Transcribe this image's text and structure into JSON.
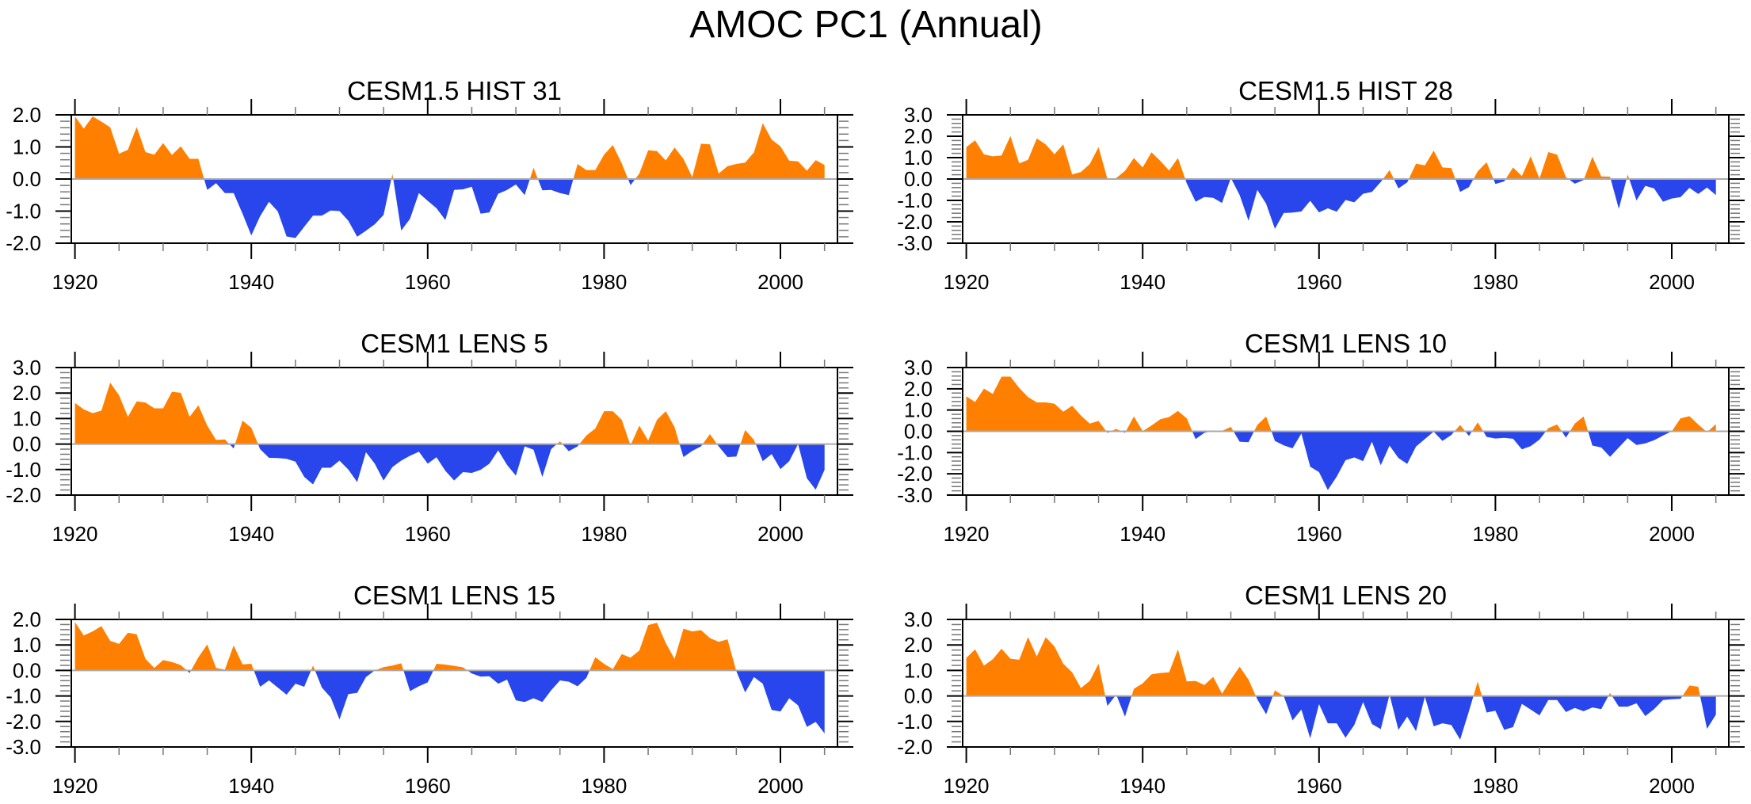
{
  "figure": {
    "title": "AMOC PC1 (Annual)"
  },
  "colors": {
    "positive": "#ff8000",
    "negative": "#2846eb",
    "zero_line": "#aaaaaa",
    "axis": "#000000"
  },
  "chart_data": [
    {
      "type": "area",
      "title": "CESM1.5 HIST 31",
      "xlabel": "",
      "ylabel": "",
      "x_start": 1920,
      "x_end": 2005,
      "xlim": [
        1919.5,
        2006.5
      ],
      "ylim": [
        -2.0,
        2.0
      ],
      "yticks": [
        -2.0,
        -1.0,
        0.0,
        1.0,
        2.0
      ],
      "ytick_labels": [
        "-2.0",
        "-1.0",
        "0.0",
        "1.0",
        "2.0"
      ],
      "xticks": [
        1920,
        1940,
        1960,
        1980,
        2000
      ],
      "xtick_labels": [
        "1920",
        "1940",
        "1960",
        "1980",
        "2000"
      ],
      "fill_above_zero": "orange",
      "fill_below_zero": "blue",
      "values": [
        1.95,
        1.57,
        1.95,
        1.79,
        1.61,
        0.79,
        0.91,
        1.62,
        0.84,
        0.76,
        1.12,
        0.75,
        1.02,
        0.63,
        0.63,
        -0.34,
        -0.13,
        -0.44,
        -0.44,
        -1.08,
        -1.76,
        -1.16,
        -0.71,
        -1.01,
        -1.79,
        -1.84,
        -1.49,
        -1.14,
        -1.14,
        -0.98,
        -1.0,
        -1.3,
        -1.8,
        -1.61,
        -1.41,
        -1.12,
        0.16,
        -1.61,
        -1.24,
        -0.44,
        -0.68,
        -0.91,
        -1.28,
        -0.34,
        -0.32,
        -0.24,
        -1.08,
        -1.04,
        -0.46,
        -0.34,
        -0.17,
        -0.5,
        0.35,
        -0.35,
        -0.34,
        -0.44,
        -0.5,
        0.47,
        0.28,
        0.28,
        0.76,
        1.06,
        0.49,
        -0.19,
        0.17,
        0.9,
        0.87,
        0.58,
        0.98,
        0.63,
        0.06,
        1.1,
        1.08,
        0.17,
        0.4,
        0.47,
        0.51,
        0.83,
        1.74,
        1.23,
        1.02,
        0.57,
        0.55,
        0.26,
        0.59,
        0.44
      ]
    },
    {
      "type": "area",
      "title": "CESM1.5 HIST 28",
      "xlabel": "",
      "ylabel": "",
      "x_start": 1920,
      "x_end": 2005,
      "xlim": [
        1919.5,
        2006.5
      ],
      "ylim": [
        -3.0,
        3.0
      ],
      "yticks": [
        -3.0,
        -2.0,
        -1.0,
        0.0,
        1.0,
        2.0,
        3.0
      ],
      "ytick_labels": [
        "-3.0",
        "-2.0",
        "-1.0",
        "0.0",
        "1.0",
        "2.0",
        "3.0"
      ],
      "xticks": [
        1920,
        1940,
        1960,
        1980,
        2000
      ],
      "xtick_labels": [
        "1920",
        "1940",
        "1960",
        "1980",
        "2000"
      ],
      "fill_above_zero": "orange",
      "fill_below_zero": "blue",
      "values": [
        1.49,
        1.81,
        1.15,
        1.06,
        1.1,
        2.01,
        0.73,
        0.9,
        1.9,
        1.62,
        1.16,
        1.62,
        0.21,
        0.33,
        0.7,
        1.49,
        0.01,
        0.05,
        0.38,
        0.98,
        0.54,
        1.25,
        0.85,
        0.4,
        0.98,
        -0.2,
        -1.06,
        -0.84,
        -0.88,
        -1.12,
        0.05,
        -0.75,
        -1.95,
        -0.51,
        -1.15,
        -2.33,
        -1.59,
        -1.57,
        -1.52,
        -1.02,
        -1.56,
        -1.37,
        -1.53,
        -0.98,
        -1.09,
        -0.69,
        -0.6,
        -0.14,
        0.42,
        -0.44,
        -0.16,
        0.72,
        0.64,
        1.33,
        0.54,
        0.51,
        -0.6,
        -0.38,
        0.36,
        0.79,
        -0.23,
        -0.11,
        0.54,
        0.14,
        1.06,
        0.02,
        1.26,
        1.14,
        0.09,
        -0.22,
        -0.05,
        1.04,
        0.12,
        0.11,
        -1.4,
        0.21,
        -1.0,
        -0.32,
        -0.44,
        -1.06,
        -0.91,
        -0.85,
        -0.41,
        -0.7,
        -0.4,
        -0.75
      ]
    },
    {
      "type": "area",
      "title": "CESM1 LENS 5",
      "xlabel": "",
      "ylabel": "",
      "x_start": 1920,
      "x_end": 2005,
      "xlim": [
        1919.5,
        2006.5
      ],
      "ylim": [
        -2.0,
        3.0
      ],
      "yticks": [
        -2.0,
        -1.0,
        0.0,
        1.0,
        2.0,
        3.0
      ],
      "ytick_labels": [
        "-2.0",
        "-1.0",
        "0.0",
        "1.0",
        "2.0",
        "3.0"
      ],
      "xticks": [
        1920,
        1940,
        1960,
        1980,
        2000
      ],
      "xtick_labels": [
        "1920",
        "1940",
        "1960",
        "1980",
        "2000"
      ],
      "fill_above_zero": "orange",
      "fill_below_zero": "blue",
      "values": [
        1.61,
        1.36,
        1.21,
        1.31,
        2.41,
        1.91,
        1.07,
        1.67,
        1.63,
        1.4,
        1.4,
        2.05,
        2.01,
        1.07,
        1.52,
        0.72,
        0.16,
        0.18,
        -0.17,
        0.92,
        0.64,
        -0.2,
        -0.54,
        -0.55,
        -0.58,
        -0.69,
        -1.29,
        -1.58,
        -0.93,
        -0.93,
        -0.65,
        -1.0,
        -1.49,
        -0.32,
        -0.77,
        -1.43,
        -0.9,
        -0.65,
        -0.46,
        -0.3,
        -0.77,
        -0.52,
        -1.05,
        -1.43,
        -1.1,
        -1.13,
        -1.01,
        -0.77,
        -0.25,
        -0.82,
        -1.24,
        -0.09,
        -0.22,
        -1.29,
        -0.2,
        0.11,
        -0.28,
        -0.09,
        0.34,
        0.61,
        1.29,
        1.29,
        0.95,
        -0.05,
        0.72,
        0.14,
        0.95,
        1.29,
        0.66,
        -0.51,
        -0.27,
        -0.09,
        0.39,
        -0.09,
        -0.51,
        -0.49,
        0.55,
        0.16,
        -0.67,
        -0.39,
        -0.98,
        -0.67,
        0.0,
        -1.34,
        -1.79,
        -1.01
      ]
    },
    {
      "type": "area",
      "title": "CESM1 LENS 10",
      "xlabel": "",
      "ylabel": "",
      "x_start": 1920,
      "x_end": 2005,
      "xlim": [
        1919.5,
        2006.5
      ],
      "ylim": [
        -3.0,
        3.0
      ],
      "yticks": [
        -3.0,
        -2.0,
        -1.0,
        0.0,
        1.0,
        2.0,
        3.0
      ],
      "ytick_labels": [
        "-3.0",
        "-2.0",
        "-1.0",
        "0.0",
        "1.0",
        "2.0",
        "3.0"
      ],
      "xticks": [
        1920,
        1940,
        1960,
        1980,
        2000
      ],
      "xtick_labels": [
        "1920",
        "1940",
        "1960",
        "1980",
        "2000"
      ],
      "fill_above_zero": "orange",
      "fill_below_zero": "blue",
      "values": [
        1.65,
        1.38,
        2.01,
        1.76,
        2.57,
        2.57,
        2.04,
        1.61,
        1.36,
        1.36,
        1.3,
        0.92,
        1.2,
        0.74,
        0.36,
        0.49,
        -0.07,
        0.11,
        -0.07,
        0.7,
        0.01,
        0.27,
        0.57,
        0.67,
        0.96,
        0.61,
        -0.36,
        -0.07,
        0.02,
        0.02,
        0.21,
        -0.49,
        -0.51,
        0.3,
        0.7,
        -0.45,
        -0.66,
        -0.8,
        -0.1,
        -1.67,
        -1.92,
        -2.76,
        -2.13,
        -1.36,
        -1.23,
        -1.4,
        -0.49,
        -1.6,
        -0.67,
        -1.26,
        -1.53,
        -0.72,
        -0.36,
        -0.02,
        -0.45,
        -0.17,
        0.3,
        -0.22,
        0.42,
        -0.26,
        -0.34,
        -0.31,
        -0.35,
        -0.85,
        -0.7,
        -0.39,
        0.15,
        0.32,
        -0.3,
        0.36,
        0.7,
        -0.67,
        -0.76,
        -1.2,
        -0.76,
        -0.32,
        -0.64,
        -0.57,
        -0.42,
        -0.2,
        0.0,
        0.61,
        0.71,
        0.32,
        -0.04,
        0.34
      ]
    },
    {
      "type": "area",
      "title": "CESM1 LENS 15",
      "xlabel": "",
      "ylabel": "",
      "x_start": 1920,
      "x_end": 2005,
      "xlim": [
        1919.5,
        2006.5
      ],
      "ylim": [
        -3.0,
        2.0
      ],
      "yticks": [
        -3.0,
        -2.0,
        -1.0,
        0.0,
        1.0,
        2.0
      ],
      "ytick_labels": [
        "-3.0",
        "-2.0",
        "-1.0",
        "0.0",
        "1.0",
        "2.0"
      ],
      "xticks": [
        1920,
        1940,
        1960,
        1980,
        2000
      ],
      "xtick_labels": [
        "1920",
        "1940",
        "1960",
        "1980",
        "2000"
      ],
      "fill_above_zero": "orange",
      "fill_below_zero": "blue",
      "values": [
        1.9,
        1.37,
        1.53,
        1.74,
        1.16,
        1.04,
        1.48,
        1.42,
        0.45,
        0.1,
        0.41,
        0.33,
        0.21,
        -0.1,
        0.52,
        1.02,
        0.1,
        0.03,
        0.98,
        0.24,
        0.26,
        -0.64,
        -0.39,
        -0.67,
        -0.95,
        -0.52,
        -0.64,
        0.19,
        -0.67,
        -1.06,
        -1.92,
        -0.93,
        -0.88,
        -0.26,
        0.0,
        0.13,
        0.19,
        0.28,
        -0.81,
        -0.62,
        -0.47,
        0.26,
        0.23,
        0.18,
        0.12,
        -0.12,
        -0.24,
        -0.23,
        -0.52,
        -0.36,
        -1.17,
        -1.24,
        -1.09,
        -1.24,
        -0.78,
        -0.39,
        -0.44,
        -0.62,
        -0.29,
        0.52,
        0.26,
        0.05,
        0.64,
        0.5,
        0.78,
        1.78,
        1.87,
        1.07,
        0.45,
        1.64,
        1.53,
        1.58,
        1.27,
        1.12,
        1.22,
        -0.03,
        -0.86,
        -0.26,
        -0.52,
        -1.55,
        -1.61,
        -1.09,
        -1.37,
        -2.21,
        -2.02,
        -2.47
      ]
    },
    {
      "type": "area",
      "title": "CESM1 LENS 20",
      "xlabel": "",
      "ylabel": "",
      "x_start": 1920,
      "x_end": 2005,
      "xlim": [
        1919.5,
        2006.5
      ],
      "ylim": [
        -2.0,
        3.0
      ],
      "yticks": [
        -2.0,
        -1.0,
        0.0,
        1.0,
        2.0,
        3.0
      ],
      "ytick_labels": [
        "-2.0",
        "-1.0",
        "0.0",
        "1.0",
        "2.0",
        "3.0"
      ],
      "xticks": [
        1920,
        1940,
        1960,
        1980,
        2000
      ],
      "xtick_labels": [
        "1920",
        "1940",
        "1960",
        "1980",
        "2000"
      ],
      "fill_above_zero": "orange",
      "fill_below_zero": "blue",
      "values": [
        1.49,
        1.83,
        1.19,
        1.44,
        1.85,
        1.46,
        1.42,
        2.31,
        1.55,
        2.3,
        1.94,
        1.26,
        0.93,
        0.31,
        0.59,
        1.26,
        -0.39,
        0.05,
        -0.81,
        0.28,
        0.49,
        0.85,
        0.9,
        0.93,
        1.83,
        0.57,
        0.59,
        0.43,
        0.75,
        0.09,
        0.64,
        1.15,
        0.64,
        -0.13,
        -0.72,
        0.22,
        -0.01,
        -0.96,
        -0.53,
        -1.66,
        -0.32,
        -1.07,
        -1.07,
        -1.64,
        -1.14,
        -0.24,
        -1.1,
        -1.3,
        0.05,
        -1.33,
        -0.81,
        -1.38,
        -0.03,
        -1.19,
        -1.07,
        -1.14,
        -1.71,
        -0.6,
        0.57,
        -0.65,
        -0.58,
        -1.33,
        -1.22,
        -0.31,
        -0.53,
        -0.76,
        -0.16,
        -0.16,
        -0.63,
        -0.47,
        -0.6,
        -0.45,
        -0.52,
        0.12,
        -0.42,
        -0.42,
        -0.29,
        -0.79,
        -0.52,
        -0.16,
        -0.13,
        -0.11,
        0.41,
        0.36,
        -1.29,
        -0.73
      ]
    }
  ]
}
